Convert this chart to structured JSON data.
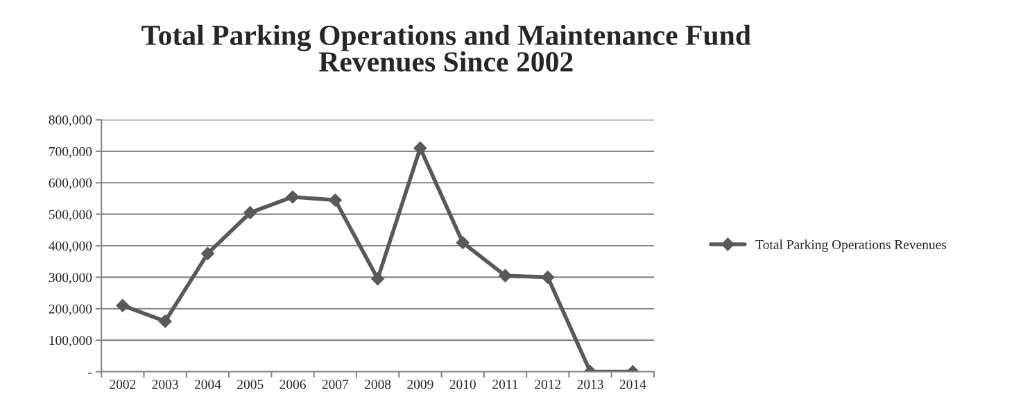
{
  "chart_data": {
    "type": "line",
    "title": "Total Parking Operations and Maintenance Fund\nRevenues Since 2002",
    "categories": [
      "2002",
      "2003",
      "2004",
      "2005",
      "2006",
      "2007",
      "2008",
      "2009",
      "2010",
      "2011",
      "2012",
      "2013",
      "2014"
    ],
    "series": [
      {
        "name": "Total Parking Operations Revenues",
        "color": "#595959",
        "values": [
          210000,
          160000,
          375000,
          505000,
          555000,
          545000,
          295000,
          710000,
          410000,
          305000,
          300000,
          0,
          0
        ]
      }
    ],
    "ylim": [
      0,
      800000
    ],
    "yticks": [
      {
        "value": 0,
        "label": "-"
      },
      {
        "value": 100000,
        "label": "100,000"
      },
      {
        "value": 200000,
        "label": "200,000"
      },
      {
        "value": 300000,
        "label": "300,000"
      },
      {
        "value": 400000,
        "label": "400,000"
      },
      {
        "value": 500000,
        "label": "500,000"
      },
      {
        "value": 600000,
        "label": "600,000"
      },
      {
        "value": 700000,
        "label": "700,000"
      },
      {
        "value": 800000,
        "label": "800,000"
      }
    ],
    "grid": "y",
    "legend": "right",
    "marker": "diamond",
    "line_style": "solid"
  }
}
